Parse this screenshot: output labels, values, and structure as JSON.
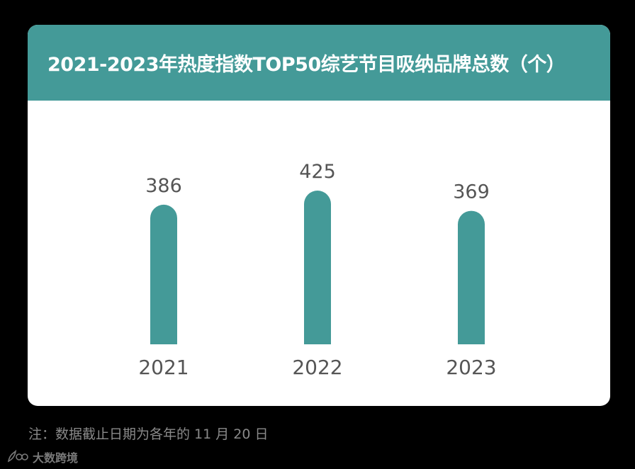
{
  "title": "2021-2023年热度指数TOP50综艺节目吸纳品牌总数（个）",
  "footnote": "注：数据截止日期为各年的 11 月 20 日",
  "brand": {
    "name": "大数跨境",
    "logo_icon": "leaf-logo-icon"
  },
  "colors": {
    "accent": "#449a98",
    "background": "#000000",
    "card": "#ffffff",
    "label": "#555555"
  },
  "chart_data": {
    "type": "bar",
    "categories": [
      "2021",
      "2022",
      "2023"
    ],
    "values": [
      386,
      425,
      369
    ],
    "title": "2021-2023年热度指数TOP50综艺节目吸纳品牌总数（个）",
    "xlabel": "",
    "ylabel": "",
    "ylim": [
      0,
      425
    ],
    "grid": false,
    "data_labels": true
  }
}
